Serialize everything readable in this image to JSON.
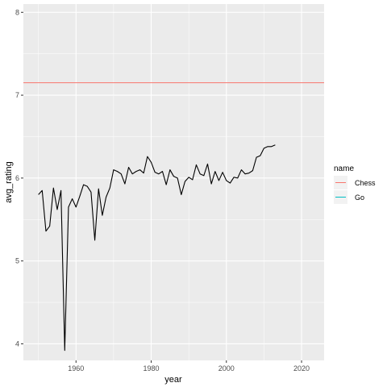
{
  "chart_data": {
    "type": "line",
    "title": "",
    "xlabel": "year",
    "ylabel": "avg_rating",
    "xlim": [
      1946,
      2026
    ],
    "ylim": [
      3.8,
      8.1
    ],
    "x_ticks": [
      1960,
      1980,
      2000,
      2020
    ],
    "y_ticks": [
      4,
      5,
      6,
      7,
      8
    ],
    "grid": true,
    "legend_position": "right",
    "legend": {
      "title": "name",
      "entries": [
        {
          "name": "Chess",
          "color": "#F8766D"
        },
        {
          "name": "Go",
          "color": "#00BFC4"
        }
      ]
    },
    "hline": {
      "series": "Chess",
      "y": 7.15,
      "color": "#F8766D"
    },
    "line_series": {
      "color": "#000000",
      "x": [
        1950,
        1951,
        1952,
        1953,
        1954,
        1955,
        1956,
        1957,
        1958,
        1959,
        1960,
        1961,
        1962,
        1963,
        1964,
        1965,
        1966,
        1967,
        1968,
        1969,
        1970,
        1971,
        1972,
        1973,
        1974,
        1975,
        1976,
        1977,
        1978,
        1979,
        1980,
        1981,
        1982,
        1983,
        1984,
        1985,
        1986,
        1987,
        1988,
        1989,
        1990,
        1991,
        1992,
        1993,
        1994,
        1995,
        1996,
        1997,
        1998,
        1999,
        2000,
        2001,
        2002,
        2003,
        2004,
        2005,
        2006,
        2007,
        2008,
        2009,
        2010,
        2011,
        2012,
        2013
      ],
      "y": [
        5.8,
        5.85,
        5.36,
        5.42,
        5.88,
        5.62,
        5.85,
        3.92,
        5.65,
        5.75,
        5.65,
        5.78,
        5.92,
        5.9,
        5.83,
        5.25,
        5.87,
        5.55,
        5.77,
        5.88,
        6.1,
        6.08,
        6.05,
        5.93,
        6.13,
        6.05,
        6.08,
        6.1,
        6.06,
        6.26,
        6.19,
        6.07,
        6.05,
        6.08,
        5.92,
        6.1,
        6.02,
        6.0,
        5.8,
        5.96,
        6.01,
        5.98,
        6.16,
        6.05,
        6.03,
        6.17,
        5.93,
        6.08,
        5.97,
        6.07,
        5.97,
        5.94,
        6.01,
        6.0,
        6.1,
        6.05,
        6.06,
        6.09,
        6.25,
        6.27,
        6.36,
        6.38,
        6.38,
        6.4
      ]
    }
  }
}
